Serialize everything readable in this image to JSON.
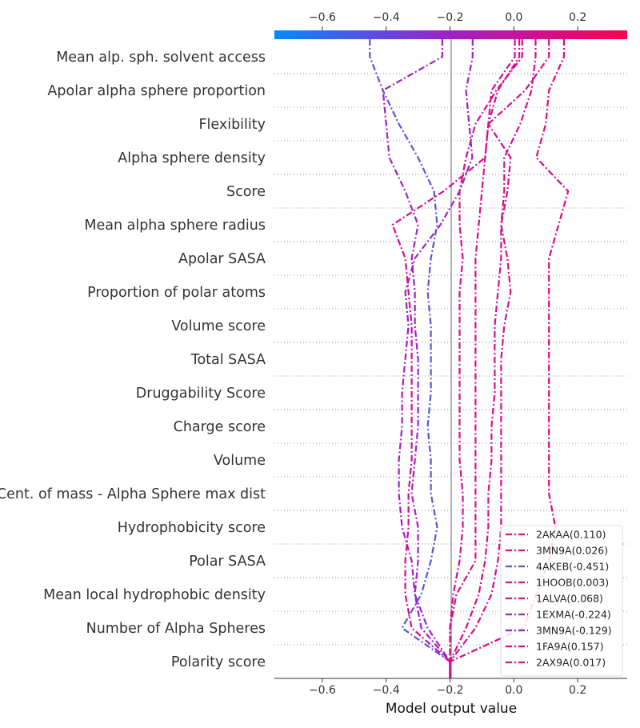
{
  "chart_data": {
    "type": "line",
    "title": "",
    "xlabel": "Model output value",
    "ylabel": "",
    "xlim": [
      -0.75,
      0.355
    ],
    "base_value": -0.2,
    "x_ticks": [
      -0.6,
      -0.4,
      -0.2,
      0.0,
      0.2
    ],
    "x_tick_labels": [
      "−0.6",
      "−0.4",
      "−0.2",
      "0.0",
      "0.2"
    ],
    "features": [
      "Mean alp. sph. solvent access",
      "Apolar alpha sphere proportion",
      "Flexibility",
      "Alpha sphere density",
      "Score",
      "Mean alpha sphere radius",
      "Apolar SASA",
      "Proportion of polar atoms",
      "Volume score",
      "Total SASA",
      "Druggability Score",
      "Charge score",
      "Volume",
      "Cent. of mass - Alpha Sphere max dist",
      "Hydrophobicity score",
      "Polar SASA",
      "Mean local hydrophobic density",
      "Number of Alpha Spheres",
      "Polarity score"
    ],
    "colorbar": {
      "low_color": "#008bfb",
      "mid_color": "#a020c8",
      "high_color": "#ff0052"
    },
    "grid": "dotted horizontal row lines",
    "legend_position": "bottom-right",
    "series": [
      {
        "name": "2AKAA(0.110)",
        "color": "#d80c90",
        "values": [
          0.11,
          0.035,
          -0.08,
          -0.09,
          -0.1,
          -0.11,
          -0.12,
          -0.12,
          -0.12,
          -0.12,
          -0.12,
          -0.12,
          -0.12,
          -0.12,
          -0.12,
          -0.12,
          -0.18,
          -0.2,
          -0.2
        ]
      },
      {
        "name": "3MN9A(0.026)",
        "color": "#d80c90",
        "values": [
          0.026,
          -0.055,
          -0.12,
          -0.15,
          -0.17,
          -0.17,
          -0.16,
          -0.17,
          -0.17,
          -0.17,
          -0.17,
          -0.17,
          -0.17,
          -0.16,
          -0.16,
          -0.17,
          -0.19,
          -0.2,
          -0.2
        ]
      },
      {
        "name": "4AKEB(-0.451)",
        "color": "#5b54d8",
        "values": [
          -0.451,
          -0.41,
          -0.36,
          -0.3,
          -0.25,
          -0.24,
          -0.26,
          -0.27,
          -0.26,
          -0.26,
          -0.26,
          -0.27,
          -0.26,
          -0.26,
          -0.24,
          -0.26,
          -0.29,
          -0.35,
          -0.2
        ]
      },
      {
        "name": "1HOOB(0.003)",
        "color": "#d80c90",
        "values": [
          0.003,
          -0.07,
          -0.08,
          -0.01,
          -0.02,
          -0.04,
          -0.04,
          -0.05,
          -0.06,
          -0.06,
          -0.06,
          -0.07,
          -0.07,
          -0.08,
          -0.08,
          -0.09,
          -0.11,
          -0.15,
          -0.2
        ]
      },
      {
        "name": "1ALVA(0.068)",
        "color": "#d80c90",
        "values": [
          0.068,
          0.055,
          0.02,
          -0.03,
          -0.03,
          -0.04,
          -0.02,
          -0.01,
          -0.03,
          -0.04,
          -0.04,
          -0.04,
          -0.04,
          -0.04,
          -0.04,
          -0.05,
          -0.07,
          -0.12,
          -0.2
        ]
      },
      {
        "name": "1EXMA(-0.224)",
        "color": "#a020c8",
        "values": [
          -0.224,
          -0.41,
          -0.4,
          -0.39,
          -0.34,
          -0.3,
          -0.32,
          -0.31,
          -0.31,
          -0.3,
          -0.3,
          -0.3,
          -0.31,
          -0.32,
          -0.3,
          -0.3,
          -0.31,
          -0.29,
          -0.2
        ]
      },
      {
        "name": "3MN9A(-0.129)",
        "color": "#a020c8",
        "values": [
          -0.129,
          -0.15,
          -0.14,
          -0.13,
          -0.17,
          -0.23,
          -0.31,
          -0.34,
          -0.33,
          -0.34,
          -0.35,
          -0.35,
          -0.36,
          -0.36,
          -0.35,
          -0.32,
          -0.31,
          -0.27,
          -0.2
        ]
      },
      {
        "name": "1FA9A(0.157)",
        "color": "#e0087c",
        "values": [
          0.157,
          0.11,
          0.1,
          0.07,
          0.17,
          0.14,
          0.11,
          0.11,
          0.11,
          0.11,
          0.11,
          0.11,
          0.11,
          0.11,
          0.13,
          0.11,
          0.07,
          0.03,
          -0.2
        ]
      },
      {
        "name": "2AX9A(0.017)",
        "color": "#d80c90",
        "values": [
          0.017,
          -0.05,
          -0.08,
          -0.09,
          -0.22,
          -0.38,
          -0.34,
          -0.33,
          -0.32,
          -0.32,
          -0.32,
          -0.32,
          -0.32,
          -0.33,
          -0.33,
          -0.34,
          -0.34,
          -0.32,
          -0.2
        ]
      }
    ]
  }
}
